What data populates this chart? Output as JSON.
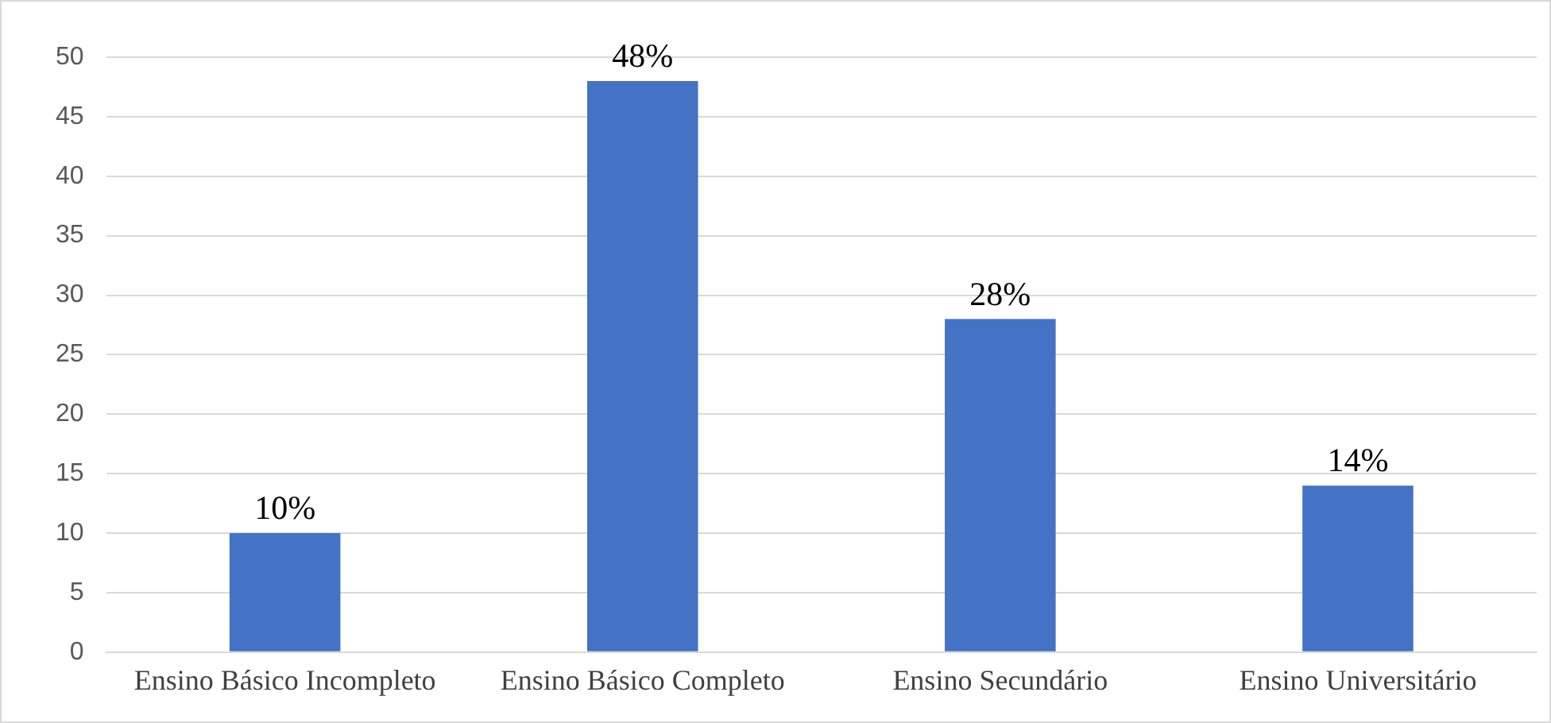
{
  "chart_data": {
    "type": "bar",
    "categories": [
      "Ensino Básico Incompleto",
      "Ensino Básico Completo",
      "Ensino Secundário",
      "Ensino Universitário"
    ],
    "values": [
      10,
      48,
      28,
      14
    ],
    "value_labels": [
      "10%",
      "48%",
      "28%",
      "14%"
    ],
    "color": "#4472c4",
    "ylim": [
      0,
      50
    ],
    "yticks": [
      0,
      5,
      10,
      15,
      20,
      25,
      30,
      35,
      40,
      45,
      50
    ],
    "grid": "y",
    "legend": false
  }
}
